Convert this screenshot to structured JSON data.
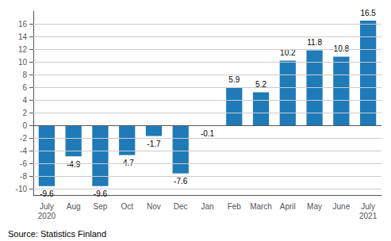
{
  "chart_data": {
    "type": "bar",
    "categories": [
      "July\n2020",
      "Aug",
      "Sep",
      "Oct",
      "Nov",
      "Dec",
      "Jan",
      "Feb",
      "March",
      "April",
      "May",
      "June",
      "July\n2021"
    ],
    "values": [
      -9.6,
      -4.9,
      -9.6,
      -4.7,
      -1.7,
      -7.6,
      -0.1,
      5.9,
      5.2,
      10.2,
      11.8,
      10.8,
      16.5
    ],
    "color": "#1f7ab8",
    "ylim": [
      -11,
      18
    ],
    "yticks": [
      -10,
      -8,
      -6,
      -4,
      -2,
      0,
      2,
      4,
      6,
      8,
      10,
      12,
      14,
      16
    ],
    "grid": true,
    "data_labels": true,
    "annotation": "Source: Statistics Finland"
  }
}
